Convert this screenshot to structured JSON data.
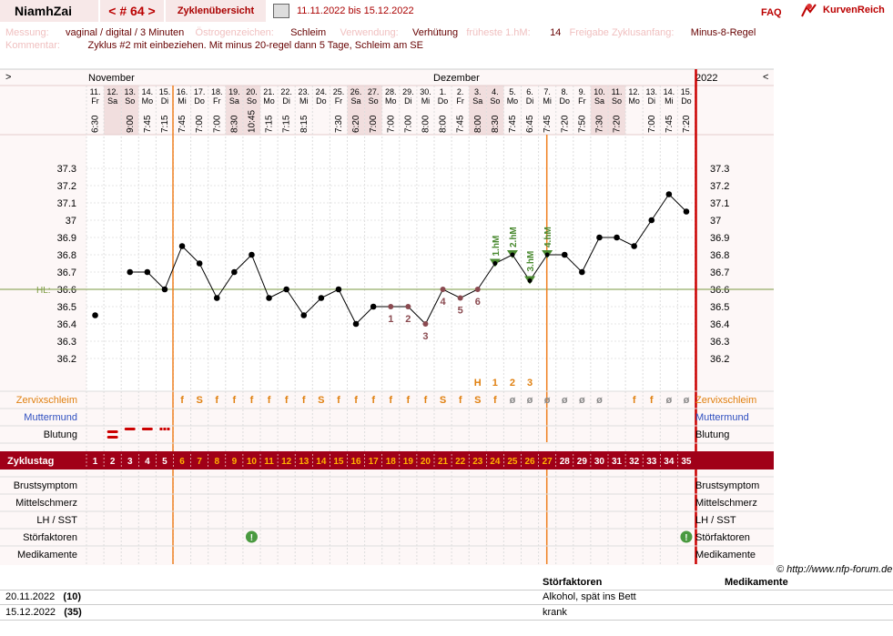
{
  "header": {
    "name": "NiamhZai",
    "cycle_label": "< # 64 >",
    "overview_label": "Zyklenübersicht",
    "date_range": "11.11.2022 bis 15.12.2022",
    "faq": "FAQ",
    "logo_text": "KurvenReich",
    "print_icon": "printer-icon"
  },
  "meta1": {
    "measure_label": "Messung:",
    "measure_value": "vaginal / digital / 3 Minuten",
    "estrogen_label": "Östrogenzeichen:",
    "estrogen_value": "Schleim",
    "use_label": "Verwendung:",
    "use_value": "Verhütung",
    "earliest_label": "früheste 1.hM:",
    "earliest_value": "14",
    "release_label": "Freigabe Zyklusanfang:",
    "release_value": "Minus-8-Regel"
  },
  "meta2": {
    "comment_label": "Kommentar:",
    "comment_value": "Zyklus #2  mit einbeziehen. Mit minus 20-regel dann 5 Tage,  Schleim am SE"
  },
  "months": {
    "nav_left": ">",
    "nav_right": "<",
    "m1": "November",
    "m2": "Dezember",
    "year": "2022"
  },
  "days": [
    {
      "d": "11.",
      "w": "Fr",
      "t": "6:30"
    },
    {
      "d": "12.",
      "w": "Sa",
      "t": ""
    },
    {
      "d": "13.",
      "w": "So",
      "t": "9:00"
    },
    {
      "d": "14.",
      "w": "Mo",
      "t": "7:45"
    },
    {
      "d": "15.",
      "w": "Di",
      "t": "7:15"
    },
    {
      "d": "16.",
      "w": "Mi",
      "t": "7:45"
    },
    {
      "d": "17.",
      "w": "Do",
      "t": "7:00"
    },
    {
      "d": "18.",
      "w": "Fr",
      "t": "7:00"
    },
    {
      "d": "19.",
      "w": "Sa",
      "t": "8:30"
    },
    {
      "d": "20.",
      "w": "So",
      "t": "10:45"
    },
    {
      "d": "21.",
      "w": "Mo",
      "t": "7:15"
    },
    {
      "d": "22.",
      "w": "Di",
      "t": "7:15"
    },
    {
      "d": "23.",
      "w": "Mi",
      "t": "8:15"
    },
    {
      "d": "24.",
      "w": "Do",
      "t": ""
    },
    {
      "d": "25.",
      "w": "Fr",
      "t": "7:30"
    },
    {
      "d": "26.",
      "w": "Sa",
      "t": "6:20"
    },
    {
      "d": "27.",
      "w": "So",
      "t": "7:00"
    },
    {
      "d": "28.",
      "w": "Mo",
      "t": "7:00"
    },
    {
      "d": "29.",
      "w": "Di",
      "t": "7:00"
    },
    {
      "d": "30.",
      "w": "Mi",
      "t": "8:00"
    },
    {
      "d": "1.",
      "w": "Do",
      "t": "8:00"
    },
    {
      "d": "2.",
      "w": "Fr",
      "t": "7:45"
    },
    {
      "d": "3.",
      "w": "Sa",
      "t": "8:00"
    },
    {
      "d": "4.",
      "w": "So",
      "t": "8:30"
    },
    {
      "d": "5.",
      "w": "Mo",
      "t": "7:45"
    },
    {
      "d": "6.",
      "w": "Di",
      "t": "6:45"
    },
    {
      "d": "7.",
      "w": "Mi",
      "t": "7:45"
    },
    {
      "d": "8.",
      "w": "Do",
      "t": "7:20"
    },
    {
      "d": "9.",
      "w": "Fr",
      "t": "7:50"
    },
    {
      "d": "10.",
      "w": "Sa",
      "t": "7:30"
    },
    {
      "d": "11.",
      "w": "So",
      "t": "7:20"
    },
    {
      "d": "12.",
      "w": "Mo",
      "t": ""
    },
    {
      "d": "13.",
      "w": "Di",
      "t": "7:00"
    },
    {
      "d": "14.",
      "w": "Mi",
      "t": "7:45"
    },
    {
      "d": "15.",
      "w": "Do",
      "t": "7:20"
    }
  ],
  "weekend_cols": [
    1,
    2,
    8,
    9,
    15,
    16,
    22,
    23,
    29,
    30
  ],
  "chart_data": {
    "type": "line",
    "y_ticks": [
      "37.3",
      "37.2",
      "37.1",
      "37",
      "36.9",
      "36.8",
      "36.7",
      "36.6",
      "36.5",
      "36.4",
      "36.3",
      "36.2"
    ],
    "ylim": [
      36.1,
      37.4
    ],
    "hl_label": "HL:",
    "hl_value": 36.6,
    "temps": [
      36.45,
      null,
      36.7,
      36.7,
      36.6,
      36.85,
      36.75,
      36.55,
      36.7,
      36.8,
      36.55,
      36.6,
      36.45,
      36.55,
      36.6,
      36.4,
      36.5,
      36.5,
      36.5,
      36.4,
      36.6,
      36.55,
      36.6,
      36.75,
      36.8,
      36.65,
      36.8,
      36.8,
      36.7,
      36.9,
      36.9,
      36.85,
      37.0,
      37.15,
      37.05
    ],
    "low_labels": [
      {
        "day": 18,
        "text": "1"
      },
      {
        "day": 19,
        "text": "2"
      },
      {
        "day": 20,
        "text": "3"
      },
      {
        "day": 21,
        "text": "4"
      },
      {
        "day": 22,
        "text": "5"
      },
      {
        "day": 23,
        "text": "6"
      }
    ],
    "high_labels": [
      {
        "day": 24,
        "text": "1.hM"
      },
      {
        "day": 25,
        "text": "2.hM"
      },
      {
        "day": 26,
        "text": "3.hM"
      },
      {
        "day": 27,
        "text": "4.hM"
      }
    ],
    "mucus_count": [
      {
        "day": 23,
        "text": "H"
      },
      {
        "day": 24,
        "text": "1"
      },
      {
        "day": 25,
        "text": "2"
      },
      {
        "day": 26,
        "text": "3"
      }
    ],
    "cycle_start_line_day": 6,
    "ovulation_line_day": 27
  },
  "rows": {
    "mucus_label": "Zervixschleim",
    "cervix_label": "Muttermund",
    "bleeding_label": "Blutung",
    "cycle_day_label": "Zyklustag",
    "breast_label": "Brustsymptom",
    "mittel_label": "Mittelschmerz",
    "lh_label": "LH / SST",
    "disturb_label": "Störfaktoren",
    "meds_label": "Medikamente"
  },
  "mucus": [
    "",
    "",
    "",
    "",
    "",
    "f",
    "S",
    "f",
    "f",
    "f",
    "f",
    "f",
    "f",
    "S",
    "f",
    "f",
    "f",
    "f",
    "f",
    "f",
    "S",
    "f",
    "S",
    "f",
    "ø",
    "ø",
    "ø",
    "ø",
    "ø",
    "ø",
    "",
    "f",
    "f",
    "ø",
    "ø"
  ],
  "cycle_days": [
    "1",
    "2",
    "3",
    "4",
    "5",
    "6",
    "7",
    "8",
    "9",
    "10",
    "11",
    "12",
    "13",
    "14",
    "15",
    "16",
    "17",
    "18",
    "19",
    "20",
    "21",
    "22",
    "23",
    "24",
    "25",
    "26",
    "27",
    "28",
    "29",
    "30",
    "31",
    "32",
    "33",
    "34",
    "35"
  ],
  "disturb_days": [
    10,
    35
  ],
  "credit": "© http://www.nfp-forum.de",
  "table": {
    "h_disturb": "Störfaktoren",
    "h_meds": "Medikamente",
    "rows": [
      {
        "date": "20.11.2022",
        "day": "(10)",
        "text": "Alkohol, spät ins Bett"
      },
      {
        "date": "15.12.2022",
        "day": "(35)",
        "text": "krank"
      }
    ]
  }
}
